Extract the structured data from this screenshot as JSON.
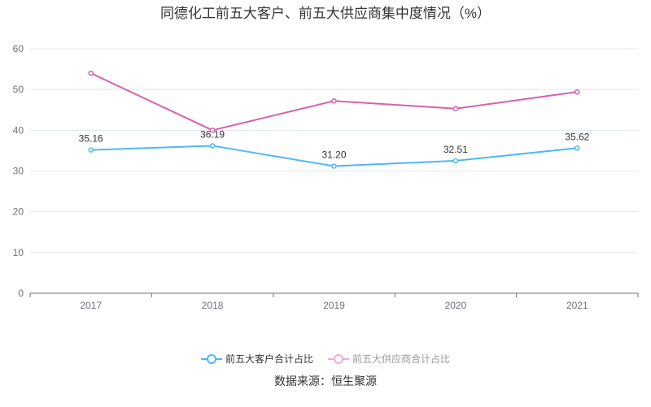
{
  "chart_data": {
    "type": "line",
    "title": "同德化工前五大客户、前五大供应商集中度情况（%）",
    "categories": [
      "2017",
      "2018",
      "2019",
      "2020",
      "2021"
    ],
    "ylim": [
      0,
      60
    ],
    "yticks": [
      "0",
      "10",
      "20",
      "30",
      "40",
      "50",
      "60"
    ],
    "grid": true,
    "legend_position": "bottom",
    "series": [
      {
        "name": "前五大客户合计占比",
        "color": "#4db8f5",
        "values": [
          35.16,
          36.19,
          31.2,
          32.51,
          35.62
        ],
        "labels": [
          "35.16",
          "36.19",
          "31.20",
          "32.51",
          "35.62"
        ],
        "legend_text_color": "#333333"
      },
      {
        "name": "前五大供应商合计占比",
        "color": "#d95fad",
        "values": [
          54.0,
          40.0,
          47.2,
          45.3,
          49.4
        ],
        "legend_text_color": "#999999",
        "legend_icon_color": "#eeaed5"
      }
    ]
  },
  "source": "数据来源：恒生聚源"
}
